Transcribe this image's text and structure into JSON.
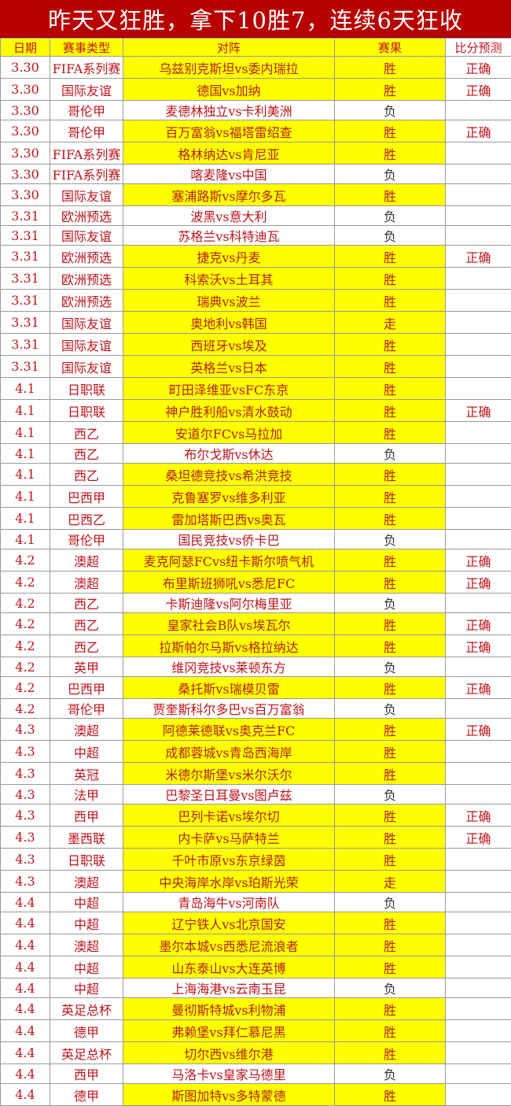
{
  "title": "昨天又狂胜，拿下10胜7，连续6天狂收",
  "headers": [
    "日期",
    "赛事类型",
    "对阵",
    "赛果",
    "比分预测"
  ],
  "colors": {
    "title_bg": "#b80000",
    "highlight": "#ffff00",
    "text": "#c0141c"
  },
  "rows": [
    [
      "3.30",
      "FIFA系列赛",
      "乌兹别克斯坦vs委内瑞拉",
      "胜",
      "正确"
    ],
    [
      "3.30",
      "国际友谊",
      "德国vs加纳",
      "胜",
      "正确"
    ],
    [
      "3.30",
      "哥伦甲",
      "麦德林独立vs卡利美洲",
      "负",
      ""
    ],
    [
      "3.30",
      "哥伦甲",
      "百万富翁vs福塔雷绍查",
      "胜",
      "正确"
    ],
    [
      "3.30",
      "FIFA系列赛",
      "格林纳达vs肯尼亚",
      "胜",
      ""
    ],
    [
      "3.30",
      "FIFA系列赛",
      "喀麦隆vs中国",
      "负",
      ""
    ],
    [
      "3.30",
      "国际友谊",
      "塞浦路斯vs摩尔多瓦",
      "胜",
      ""
    ],
    [
      "3.31",
      "欧洲预选",
      "波黑vs意大利",
      "负",
      ""
    ],
    [
      "3.31",
      "国际友谊",
      "苏格兰vs科特迪瓦",
      "负",
      ""
    ],
    [
      "3.31",
      "欧洲预选",
      "捷克vs丹麦",
      "胜",
      "正确"
    ],
    [
      "3.31",
      "欧洲预选",
      "科索沃vs土耳其",
      "胜",
      ""
    ],
    [
      "3.31",
      "欧洲预选",
      "瑞典vs波兰",
      "胜",
      ""
    ],
    [
      "3.31",
      "国际友谊",
      "奥地利vs韩国",
      "走",
      ""
    ],
    [
      "3.31",
      "国际友谊",
      "西班牙vs埃及",
      "胜",
      ""
    ],
    [
      "3.31",
      "国际友谊",
      "英格兰vs日本",
      "胜",
      ""
    ],
    [
      "4.1",
      "日职联",
      "町田泽维亚vsFC东京",
      "胜",
      ""
    ],
    [
      "4.1",
      "日职联",
      "神户胜利船vs清水鼓动",
      "胜",
      "正确"
    ],
    [
      "4.1",
      "西乙",
      "安道尔FCvs马拉加",
      "胜",
      ""
    ],
    [
      "4.1",
      "西乙",
      "布尔戈斯vs休达",
      "负",
      ""
    ],
    [
      "4.1",
      "西乙",
      "桑坦德竞技vs希洪竞技",
      "胜",
      ""
    ],
    [
      "4.1",
      "巴西甲",
      "克鲁塞罗vs维多利亚",
      "胜",
      ""
    ],
    [
      "4.1",
      "巴西乙",
      "雷加塔斯巴西vs奥瓦",
      "胜",
      ""
    ],
    [
      "4.1",
      "哥伦甲",
      "国民竞技vs侨卡巴",
      "负",
      ""
    ],
    [
      "4.2",
      "澳超",
      "麦克阿瑟FCvs纽卡斯尔喷气机",
      "胜",
      "正确"
    ],
    [
      "4.2",
      "澳超",
      "布里斯班狮吼vs悉尼FC",
      "胜",
      "正确"
    ],
    [
      "4.2",
      "西乙",
      "卡斯迪隆vs阿尔梅里亚",
      "负",
      ""
    ],
    [
      "4.2",
      "西乙",
      "皇家社会B队vs埃瓦尔",
      "胜",
      "正确"
    ],
    [
      "4.2",
      "西乙",
      "拉斯帕尔马斯vs格拉纳达",
      "胜",
      "正确"
    ],
    [
      "4.2",
      "英甲",
      "维冈竞技vs莱顿东方",
      "负",
      ""
    ],
    [
      "4.2",
      "巴西甲",
      "桑托斯vs瑞模贝雷",
      "胜",
      "正确"
    ],
    [
      "4.2",
      "哥伦甲",
      "贾奎斯科尔多巴vs百万富翁",
      "负",
      ""
    ],
    [
      "4.3",
      "澳超",
      "阿德莱德联vs奥克兰FC",
      "胜",
      "正确"
    ],
    [
      "4.3",
      "中超",
      "成都蓉城vs青岛西海岸",
      "胜",
      ""
    ],
    [
      "4.3",
      "英冠",
      "米德尔斯堡vs米尔沃尔",
      "胜",
      ""
    ],
    [
      "4.3",
      "法甲",
      "巴黎圣日耳曼vs图卢兹",
      "负",
      ""
    ],
    [
      "4.3",
      "西甲",
      "巴列卡诺vs埃尔切",
      "胜",
      "正确"
    ],
    [
      "4.3",
      "墨西联",
      "内卡萨vs马萨特兰",
      "胜",
      "正确"
    ],
    [
      "4.3",
      "日职联",
      "千叶市原vs东京绿茵",
      "胜",
      ""
    ],
    [
      "4.3",
      "澳超",
      "中央海岸水岸vs珀斯光荣",
      "走",
      ""
    ],
    [
      "4.4",
      "中超",
      "青岛海牛vs河南队",
      "负",
      ""
    ],
    [
      "4.4",
      "中超",
      "辽宁铁人vs北京国安",
      "胜",
      ""
    ],
    [
      "4.4",
      "澳超",
      "墨尔本城vs西悉尼流浪者",
      "胜",
      ""
    ],
    [
      "4.4",
      "中超",
      "山东泰山vs大连英博",
      "胜",
      ""
    ],
    [
      "4.4",
      "中超",
      "上海海港vs云南玉昆",
      "负",
      ""
    ],
    [
      "4.4",
      "英足总杯",
      "曼彻斯特城vs利物浦",
      "胜",
      ""
    ],
    [
      "4.4",
      "德甲",
      "弗赖堡vs拜仁慕尼黑",
      "胜",
      ""
    ],
    [
      "4.4",
      "英足总杯",
      "切尔西vs维尔港",
      "胜",
      ""
    ],
    [
      "4.4",
      "西甲",
      "马洛卡vs皇家马德里",
      "负",
      ""
    ],
    [
      "4.4",
      "德甲",
      "斯图加特vs多特蒙德",
      "胜",
      ""
    ]
  ]
}
